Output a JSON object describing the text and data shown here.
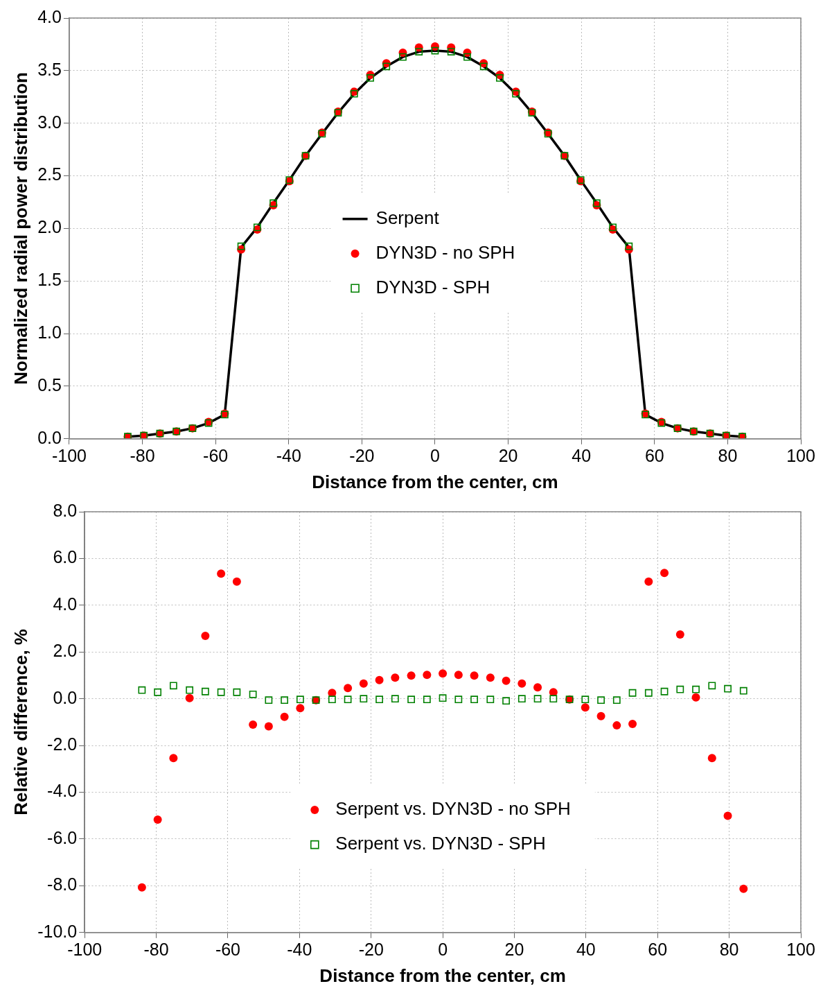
{
  "chart_data": [
    {
      "type": "line",
      "xlabel": "Distance from the center, cm",
      "ylabel": "Normalized radial power distribution",
      "x": [
        -84,
        -79.6,
        -75.2,
        -70.7,
        -66.3,
        -61.9,
        -57.5,
        -53.0,
        -48.6,
        -44.2,
        -39.8,
        -35.4,
        -30.9,
        -26.5,
        -22.1,
        -17.7,
        -13.3,
        -8.8,
        -4.4,
        0,
        4.4,
        8.8,
        13.3,
        17.7,
        22.1,
        26.5,
        30.9,
        35.4,
        39.8,
        44.2,
        48.6,
        53.0,
        57.5,
        61.9,
        66.3,
        70.7,
        75.2,
        79.6,
        84
      ],
      "series": [
        {
          "name": "Serpent",
          "type": "line",
          "color": "#000000",
          "marker": "none",
          "line_style": "solid",
          "values": [
            0.02,
            0.03,
            0.05,
            0.07,
            0.1,
            0.15,
            0.23,
            1.82,
            2.01,
            2.24,
            2.46,
            2.69,
            2.9,
            3.1,
            3.28,
            3.43,
            3.54,
            3.63,
            3.68,
            3.69,
            3.68,
            3.63,
            3.54,
            3.43,
            3.28,
            3.1,
            2.9,
            2.69,
            2.46,
            2.24,
            2.01,
            1.82,
            0.23,
            0.15,
            0.1,
            0.07,
            0.05,
            0.03,
            0.02
          ]
        },
        {
          "name": "DYN3D - no SPH",
          "type": "scatter",
          "color": "#ff0000",
          "marker": "circle",
          "values": [
            0.02,
            0.03,
            0.05,
            0.07,
            0.1,
            0.16,
            0.24,
            1.8,
            1.99,
            2.22,
            2.45,
            2.69,
            2.91,
            3.11,
            3.3,
            3.46,
            3.57,
            3.67,
            3.72,
            3.73,
            3.72,
            3.67,
            3.57,
            3.46,
            3.3,
            3.11,
            2.91,
            2.69,
            2.45,
            2.22,
            1.99,
            1.8,
            0.24,
            0.16,
            0.1,
            0.07,
            0.05,
            0.03,
            0.02
          ]
        },
        {
          "name": "DYN3D - SPH",
          "type": "scatter",
          "color": "#008000",
          "marker": "square",
          "values": [
            0.02,
            0.03,
            0.05,
            0.07,
            0.1,
            0.15,
            0.23,
            1.83,
            2.01,
            2.24,
            2.46,
            2.69,
            2.9,
            3.1,
            3.28,
            3.43,
            3.54,
            3.63,
            3.68,
            3.69,
            3.68,
            3.63,
            3.54,
            3.43,
            3.28,
            3.1,
            2.9,
            2.69,
            2.46,
            2.24,
            2.01,
            1.83,
            0.23,
            0.15,
            0.1,
            0.07,
            0.05,
            0.03,
            0.02
          ]
        }
      ],
      "xlim": [
        -100,
        100
      ],
      "xticks": [
        -100,
        -80,
        -60,
        -40,
        -20,
        0,
        20,
        40,
        60,
        80,
        100
      ],
      "ylim": [
        0,
        4
      ],
      "yticks": [
        {
          "value": 0,
          "label": "0.0"
        },
        {
          "value": 0.5,
          "label": "0.5"
        },
        {
          "value": 1,
          "label": "1.0"
        },
        {
          "value": 1.5,
          "label": "1.5"
        },
        {
          "value": 2,
          "label": "2.0"
        },
        {
          "value": 2.5,
          "label": "2.5"
        },
        {
          "value": 3,
          "label": "3.0"
        },
        {
          "value": 3.5,
          "label": "3.5"
        },
        {
          "value": 4,
          "label": "4.0"
        }
      ],
      "grid": true,
      "legend": "center"
    },
    {
      "type": "scatter",
      "xlabel": "Distance from the center, cm",
      "ylabel": "Relative difference, %",
      "x": [
        -84,
        -79.6,
        -75.2,
        -70.7,
        -66.3,
        -61.9,
        -57.5,
        -53.0,
        -48.6,
        -44.2,
        -39.8,
        -35.4,
        -30.9,
        -26.5,
        -22.1,
        -17.7,
        -13.3,
        -8.8,
        -4.4,
        0,
        4.4,
        8.8,
        13.3,
        17.7,
        22.1,
        26.5,
        30.9,
        35.4,
        39.8,
        44.2,
        48.6,
        53.0,
        57.5,
        61.9,
        66.3,
        70.7,
        75.2,
        79.6,
        84
      ],
      "series": [
        {
          "name": "Serpent vs. DYN3D - no SPH",
          "color": "#ff0000",
          "marker": "circle",
          "values": [
            -8.07,
            -5.17,
            -2.54,
            0.03,
            2.69,
            5.35,
            5.01,
            -1.11,
            -1.18,
            -0.77,
            -0.4,
            -0.06,
            0.25,
            0.46,
            0.65,
            0.8,
            0.9,
            0.99,
            1.02,
            1.08,
            1.02,
            0.99,
            0.9,
            0.77,
            0.65,
            0.49,
            0.28,
            -0.03,
            -0.37,
            -0.74,
            -1.14,
            -1.08,
            5.01,
            5.38,
            2.75,
            0.06,
            -2.54,
            -5.01,
            -8.13
          ]
        },
        {
          "name": "Serpent vs. DYN3D - SPH",
          "color": "#008000",
          "marker": "square",
          "values": [
            0.37,
            0.28,
            0.56,
            0.37,
            0.31,
            0.28,
            0.28,
            0.19,
            -0.06,
            -0.06,
            -0.03,
            -0.06,
            -0.03,
            -0.03,
            0.0,
            -0.03,
            0.0,
            -0.03,
            -0.03,
            0.03,
            -0.03,
            -0.03,
            -0.03,
            -0.09,
            0.0,
            0.0,
            0.0,
            -0.03,
            -0.03,
            -0.06,
            -0.06,
            0.25,
            0.25,
            0.31,
            0.4,
            0.4,
            0.56,
            0.43,
            0.34
          ]
        }
      ],
      "xlim": [
        -100,
        100
      ],
      "xticks": [
        -100,
        -80,
        -60,
        -40,
        -20,
        0,
        20,
        40,
        60,
        80,
        100
      ],
      "ylim": [
        -10,
        8
      ],
      "yticks": [
        {
          "value": -10,
          "label": "-10.0"
        },
        {
          "value": -8,
          "label": "-8.0"
        },
        {
          "value": -6,
          "label": "-6.0"
        },
        {
          "value": -4,
          "label": "-4.0"
        },
        {
          "value": -2,
          "label": "-2.0"
        },
        {
          "value": 0,
          "label": "0.0"
        },
        {
          "value": 2,
          "label": "2.0"
        },
        {
          "value": 4,
          "label": "4.0"
        },
        {
          "value": 6,
          "label": "6.0"
        },
        {
          "value": 8,
          "label": "8.0"
        }
      ],
      "grid": true,
      "legend": "bottom"
    }
  ]
}
